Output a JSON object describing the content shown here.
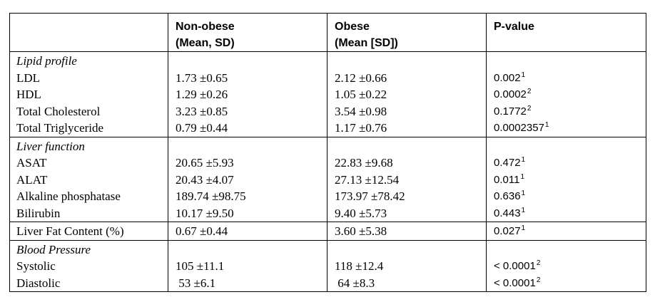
{
  "header": {
    "col1": "",
    "col2": [
      "Non-obese",
      "(Mean, SD)"
    ],
    "col3": [
      "Obese",
      "(Mean [SD])"
    ],
    "col4": "P-value"
  },
  "sections": [
    {
      "title": "Lipid profile",
      "rows": [
        {
          "label": "LDL",
          "non_obese": "1.73 ±0.65",
          "obese": "2.12 ±0.66",
          "p_value": "0.002",
          "p_sup": "1"
        },
        {
          "label": "HDL",
          "non_obese": "1.29 ±0.26",
          "obese": "1.05 ±0.22",
          "p_value": "0.0002",
          "p_sup": "2"
        },
        {
          "label": "Total Cholesterol",
          "non_obese": "3.23 ±0.85",
          "obese": "3.54 ±0.98",
          "p_value": "0.1772",
          "p_sup": "2"
        },
        {
          "label": "Total Triglyceride",
          "non_obese": "0.79 ±0.44",
          "obese": "1.17 ±0.76",
          "p_value": "0.0002357",
          "p_sup": "1"
        }
      ]
    },
    {
      "title": "Liver function",
      "rows": [
        {
          "label": "ASAT",
          "non_obese": "20.65 ±5.93",
          "obese": "22.83 ±9.68",
          "p_value": "0.472",
          "p_sup": "1"
        },
        {
          "label": "ALAT",
          "non_obese": "20.43 ±4.07",
          "obese": "27.13 ±12.54",
          "p_value": "0.011",
          "p_sup": "1"
        },
        {
          "label": "Alkaline phosphatase",
          "non_obese": "189.74 ±98.75",
          "obese": "173.97 ±78.42",
          "p_value": "0.636",
          "p_sup": "1"
        },
        {
          "label": "Bilirubin",
          "non_obese": "10.17 ±9.50",
          "obese": "9.40 ±5.73",
          "p_value": "0.443",
          "p_sup": "1"
        }
      ]
    },
    {
      "title": "",
      "rows": [
        {
          "label": "Liver Fat Content (%)",
          "non_obese": "0.67 ±0.44",
          "obese": "3.60 ±5.38",
          "p_value": "0.027",
          "p_sup": "1"
        }
      ]
    },
    {
      "title": "Blood Pressure",
      "rows": [
        {
          "label": "Systolic",
          "non_obese": "105 ±11.1",
          "obese": "118 ±12.4",
          "p_value": "< 0.0001",
          "p_sup": "2"
        },
        {
          "label": "Diastolic",
          "non_obese": " 53 ±6.1",
          "obese": " 64 ±8.3",
          "p_value": "< 0.0001",
          "p_sup": "2"
        }
      ]
    }
  ]
}
